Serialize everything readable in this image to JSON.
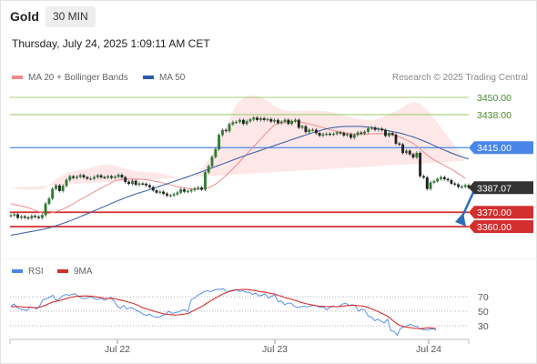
{
  "header": {
    "symbol": "Gold",
    "timeframe": "30 MIN",
    "datetime": "Thursday, July 24, 2025 1:09:11 AM CET"
  },
  "legend": {
    "ma20_label": "MA 20 + Bollinger Bands",
    "ma50_label": "MA 50",
    "credit": "Research © 2025 Trading Central",
    "rsi_label": "RSI",
    "rsi_ma_label": "9MA"
  },
  "colors": {
    "ma20": "#f08a8a",
    "ma50": "#2e5aa8",
    "bollinger_fill": "#fde4e4",
    "resistance": "#8bc34a",
    "support": "#d32f2f",
    "pivot": "#4a86e8",
    "candle_up": "#2e7d32",
    "candle_down": "#222222",
    "arrow": "#2e6db4",
    "rsi": "#4a86e8",
    "rsi_ma": "#d32f2f"
  },
  "chart_data": [
    {
      "type": "candlestick",
      "title": "",
      "x_ticks": [
        "Jul 22",
        "Jul 23",
        "Jul 24"
      ],
      "ylim": [
        3348,
        3478
      ],
      "levels": [
        {
          "label": "3450.00",
          "value": 3450.0,
          "kind": "resistance"
        },
        {
          "label": "3438.00",
          "value": 3438.0,
          "kind": "resistance"
        },
        {
          "label": "3415.00",
          "value": 3415.0,
          "kind": "pivot"
        },
        {
          "label": "3387.07",
          "value": 3387.07,
          "kind": "last_price"
        },
        {
          "label": "3370.00",
          "value": 3370.0,
          "kind": "support"
        },
        {
          "label": "3360.00",
          "value": 3360.0,
          "kind": "support"
        }
      ],
      "close": [
        3367.8,
        3368.5,
        3366.2,
        3367.0,
        3366.3,
        3365.9,
        3367.4,
        3366.8,
        3366.1,
        3368.0,
        3375.9,
        3379.5,
        3386.3,
        3388.6,
        3384.9,
        3388.4,
        3392.5,
        3394.9,
        3394.0,
        3394.7,
        3395.8,
        3394.3,
        3393.4,
        3393.4,
        3394.5,
        3395.6,
        3394.4,
        3394.2,
        3395.0,
        3394.0,
        3394.7,
        3396.0,
        3394.3,
        3391.1,
        3389.8,
        3391.8,
        3389.2,
        3390.0,
        3389.8,
        3388.8,
        3387.5,
        3385.2,
        3383.7,
        3384.3,
        3382.9,
        3381.6,
        3381.7,
        3382.5,
        3383.7,
        3385.9,
        3384.4,
        3384.7,
        3385.5,
        3386.5,
        3387.2,
        3385.9,
        3397.8,
        3402.1,
        3408.5,
        3413.9,
        3423.8,
        3427.2,
        3426.6,
        3431.3,
        3432.6,
        3432.9,
        3434.2,
        3431.6,
        3433.4,
        3434.6,
        3435.8,
        3434.3,
        3435.4,
        3434.3,
        3434.8,
        3433.2,
        3434.2,
        3432.1,
        3433.0,
        3434.3,
        3431.6,
        3433.4,
        3434.3,
        3429.0,
        3429.8,
        3425.9,
        3427.4,
        3427.4,
        3425.1,
        3423.4,
        3424.3,
        3424.6,
        3424.3,
        3424.6,
        3425.6,
        3425.1,
        3423.6,
        3424.3,
        3421.9,
        3423.8,
        3425.5,
        3424.9,
        3426.0,
        3428.4,
        3428.9,
        3427.5,
        3428.1,
        3427.2,
        3423.2,
        3425.1,
        3424.0,
        3417.8,
        3417.2,
        3411.3,
        3412.8,
        3410.4,
        3408.2,
        3411.3,
        3395.1,
        3394.2,
        3386.3,
        3390.7,
        3391.6,
        3393.1,
        3394.4,
        3393.1,
        3392.3,
        3390.0,
        3389.3,
        3387.7,
        3387.8,
        3388.8,
        3387.1
      ],
      "ma20": [
        3376,
        3375.3,
        3374.8,
        3374.3,
        3373.9,
        3373.2,
        3372.2,
        3371.2,
        3370.4,
        3369.6,
        3369.1,
        3369.2,
        3369.8,
        3370.5,
        3371.3,
        3372.2,
        3373.3,
        3374.6,
        3376,
        3377.4,
        3378.8,
        3380.1,
        3381.4,
        3382.8,
        3384.2,
        3385.5,
        3386.8,
        3388.1,
        3389.3,
        3390.6,
        3391.8,
        3392.4,
        3392.8,
        3393,
        3393.1,
        3393.1,
        3393.1,
        3393,
        3392.8,
        3392.6,
        3392.3,
        3391.9,
        3391.4,
        3390.9,
        3390.3,
        3389.6,
        3389,
        3388.4,
        3387.8,
        3387.3,
        3386.9,
        3386.6,
        3386.3,
        3386.2,
        3386.1,
        3385.9,
        3386.3,
        3387.1,
        3388.2,
        3389.6,
        3391.4,
        3393.4,
        3395.5,
        3397.8,
        3400.2,
        3402.7,
        3405.4,
        3407.9,
        3410.5,
        3413.1,
        3415.8,
        3418.4,
        3421,
        3423.6,
        3426.1,
        3428.5,
        3430.8,
        3431.7,
        3432.3,
        3432.9,
        3433.2,
        3433.3,
        3433.3,
        3433,
        3432.6,
        3432.1,
        3431.5,
        3430.9,
        3430.3,
        3429.6,
        3428.9,
        3428.2,
        3427.5,
        3426.9,
        3426.3,
        3425.8,
        3425.4,
        3425,
        3424.6,
        3424.4,
        3424.3,
        3424.3,
        3424.3,
        3424.4,
        3424.6,
        3424.7,
        3424.8,
        3424.7,
        3424.6,
        3424.4,
        3423.9,
        3423.3,
        3422.4,
        3421.4,
        3420.3,
        3419.2,
        3418,
        3416.1,
        3414.1,
        3411.8,
        3409.8,
        3408,
        3406.5,
        3405.1,
        3403.9,
        3402.6,
        3401.3,
        3399.9,
        3398.5,
        3396.9,
        3395.3,
        3393.5
      ],
      "ma50": [
        3354,
        3354.4,
        3354.8,
        3355.3,
        3355.7,
        3356.2,
        3356.6,
        3357.1,
        3357.5,
        3358,
        3358.5,
        3359.1,
        3359.8,
        3360.6,
        3361.4,
        3362.2,
        3363.1,
        3364,
        3364.9,
        3365.9,
        3366.9,
        3367.9,
        3368.9,
        3369.9,
        3371,
        3372,
        3373.1,
        3374.1,
        3375.1,
        3376.2,
        3377.2,
        3378.2,
        3379.1,
        3380.1,
        3381,
        3381.9,
        3382.7,
        3383.5,
        3384.2,
        3385,
        3385.8,
        3386.6,
        3387.4,
        3388.2,
        3389,
        3389.8,
        3390.6,
        3391.4,
        3392.3,
        3393.1,
        3393.9,
        3394.8,
        3395.6,
        3396.5,
        3397.3,
        3398.2,
        3399.1,
        3400,
        3400.9,
        3401.8,
        3402.7,
        3403.6,
        3404.5,
        3405.4,
        3406.3,
        3407.2,
        3408.1,
        3409,
        3409.9,
        3410.7,
        3411.5,
        3412.3,
        3413.2,
        3414,
        3414.8,
        3415.6,
        3416.5,
        3417.3,
        3418.1,
        3418.9,
        3419.7,
        3420.6,
        3421.4,
        3422.2,
        3423,
        3423.8,
        3424.6,
        3425.4,
        3426.1,
        3426.8,
        3427.5,
        3428.1,
        3428.6,
        3429,
        3429.3,
        3429.5,
        3429.7,
        3429.8,
        3429.8,
        3429.8,
        3429.8,
        3429.7,
        3429.5,
        3429.2,
        3428.9,
        3428.5,
        3428.1,
        3427.6,
        3427.2,
        3426.7,
        3426.2,
        3425.7,
        3425.2,
        3424.6,
        3423.9,
        3423.2,
        3422.4,
        3421.6,
        3420.6,
        3419.6,
        3418.6,
        3417.6,
        3416.5,
        3415.4,
        3414.3,
        3413.3,
        3412.3,
        3411.3,
        3410.3,
        3409.4,
        3408.6,
        3407.8,
        3407.2
      ],
      "bollinger_upper": [
        3387,
        3386.5,
        3386.2,
        3385.9,
        3385.8,
        3385.8,
        3385.7,
        3385.7,
        3385.8,
        3386.2,
        3387.2,
        3389,
        3391,
        3393,
        3394.7,
        3396,
        3397.2,
        3398.1,
        3398.6,
        3399,
        3399.4,
        3399.8,
        3400.3,
        3400.9,
        3401.6,
        3402.4,
        3402.9,
        3403.2,
        3403.2,
        3403,
        3402.5,
        3401.8,
        3401,
        3400.3,
        3399.7,
        3399.1,
        3398.6,
        3398.3,
        3398.1,
        3397.9,
        3397.7,
        3397.5,
        3397.3,
        3396.9,
        3396.5,
        3396.1,
        3395.5,
        3394.9,
        3394.3,
        3393.7,
        3393.3,
        3393.4,
        3394.1,
        3395.5,
        3397.4,
        3400,
        3403.1,
        3406.7,
        3410.7,
        3414.9,
        3419.6,
        3424.5,
        3429.5,
        3434.8,
        3440.1,
        3444.6,
        3447.7,
        3449.6,
        3450.7,
        3451.2,
        3451.2,
        3450.8,
        3450.1,
        3449.1,
        3447.5,
        3445.7,
        3443.9,
        3442.5,
        3441.6,
        3440.9,
        3440.6,
        3440.5,
        3440.5,
        3440.6,
        3440.7,
        3440.8,
        3440.9,
        3440.9,
        3440.9,
        3440.7,
        3440.5,
        3440.2,
        3439.8,
        3439.3,
        3438.7,
        3438.1,
        3437.5,
        3436.9,
        3436.2,
        3435.7,
        3435.2,
        3434.8,
        3434.5,
        3434.3,
        3434.3,
        3434.6,
        3435.1,
        3436.3,
        3437.6,
        3438.6,
        3439.4,
        3440.4,
        3441.5,
        3443.2,
        3444.8,
        3446,
        3446.5,
        3446.4,
        3445.5,
        3443.4,
        3441,
        3438.3,
        3435.5,
        3432.4,
        3429.2,
        3425.9,
        3422.6,
        3419.3,
        3416,
        3412.6,
        3409.3,
        3405.8
      ],
      "bollinger_lower": [
        3364,
        3364,
        3363.4,
        3362.8,
        3362.2,
        3361.5,
        3360.7,
        3360.4,
        3360.5,
        3360.9,
        3361.9,
        3363.4,
        3365.2,
        3366.9,
        3368.5,
        3370,
        3371.5,
        3373.1,
        3374.6,
        3376,
        3377.2,
        3378.2,
        3378.9,
        3379.4,
        3379.7,
        3379.9,
        3380,
        3380.1,
        3380.2,
        3380.3,
        3380.4,
        3380.5,
        3380.6,
        3380.7,
        3380.8,
        3380.8,
        3380.7,
        3380.5,
        3380.3,
        3380.1,
        3379.9,
        3379.7,
        3379.5,
        3379.3,
        3379.1,
        3378.9,
        3378.7,
        3378.5,
        3378.4,
        3378.3,
        3378.2,
        3378.1,
        3378.1,
        3378.1,
        3378.1,
        3378.1,
        3378.1,
        3378.1,
        3378.2,
        3378.3,
        3378.5,
        3378.7,
        3379,
        3379.4,
        3379.8,
        3380.3,
        3380.9,
        3381.6,
        3382.8,
        3384.6,
        3386.9,
        3389.6,
        3392.4,
        3395.3,
        3398.4,
        3401.5,
        3404.7,
        3407.7,
        3410.4,
        3413.1,
        3415.6,
        3418,
        3420.2,
        3422,
        3423.4,
        3424.3,
        3424.8,
        3424.9,
        3424.5,
        3423.6,
        3422.3,
        3420.6,
        3418.9,
        3417.6,
        3416.8,
        3416.4,
        3416.1,
        3416,
        3416,
        3416,
        3416,
        3416.1,
        3416.2,
        3416.4,
        3416.7,
        3417.1,
        3417.3,
        3417.1,
        3416.3,
        3414.8,
        3412.4,
        3409.1,
        3404.8,
        3400.7,
        3397.5,
        3394.6,
        3391.8,
        3389.1,
        3386.8,
        3385,
        3383.7,
        3382.7,
        3382.3,
        3382,
        3381.9,
        3381.9,
        3381.8,
        3381.7,
        3381.6,
        3381.5,
        3381.4,
        3381.4
      ]
    },
    {
      "type": "line",
      "title": "",
      "ylim": [
        15,
        90
      ],
      "y_ticks": [
        "70",
        "50",
        "30"
      ],
      "series": [
        {
          "name": "RSI",
          "values": [
            57,
            60,
            55,
            53,
            52,
            51,
            56,
            55,
            53,
            58,
            66,
            67,
            69,
            72,
            65,
            67,
            71,
            73,
            72,
            73,
            74,
            70,
            68,
            67,
            69,
            70,
            67,
            66,
            68,
            65,
            67,
            69,
            64,
            57,
            54,
            58,
            53,
            55,
            54,
            51,
            49,
            46,
            44,
            46,
            43,
            42,
            42,
            44,
            46,
            50,
            47,
            48,
            49,
            51,
            52,
            49,
            66,
            68,
            72,
            74,
            77,
            78,
            77,
            79,
            80,
            80,
            81,
            76,
            78,
            79,
            80,
            77,
            78,
            76,
            76,
            73,
            75,
            71,
            72,
            74,
            68,
            71,
            72,
            63,
            64,
            59,
            61,
            61,
            57,
            55,
            56,
            57,
            56,
            57,
            58,
            57,
            55,
            56,
            52,
            55,
            57,
            56,
            57,
            60,
            61,
            58,
            59,
            57,
            50,
            53,
            51,
            43,
            42,
            37,
            39,
            36,
            34,
            39,
            23,
            22,
            17,
            27,
            28,
            30,
            32,
            30,
            29,
            26,
            25,
            24,
            25,
            26,
            24
          ]
        },
        {
          "name": "9MA",
          "values": [
            56,
            56.5,
            56.5,
            56.3,
            55.8,
            55.6,
            55.4,
            55.1,
            54.8,
            55.6,
            57.1,
            58.7,
            60.7,
            62.6,
            63.6,
            64.6,
            65.8,
            67.1,
            68.2,
            69.4,
            70.2,
            70.8,
            70.8,
            71,
            70.9,
            70.7,
            70.1,
            69.2,
            68.7,
            67.8,
            67.5,
            67.7,
            67.4,
            66.4,
            65.2,
            64.5,
            63.1,
            61.9,
            60.7,
            58.9,
            56.7,
            54.8,
            53.2,
            52.1,
            50.6,
            49.3,
            48.1,
            46.9,
            45.9,
            45.5,
            45.1,
            44.8,
            45,
            45.5,
            46.2,
            46.8,
            49.3,
            51.4,
            53.8,
            55.8,
            58.6,
            61.4,
            64.1,
            66.8,
            69.3,
            71.7,
            74.1,
            75.6,
            77.4,
            78.4,
            79.4,
            79.6,
            79.9,
            79.9,
            79.6,
            78.9,
            78.3,
            77.1,
            76.5,
            76.1,
            75.1,
            74.3,
            73.5,
            71.8,
            70.6,
            68.8,
            67.7,
            66.8,
            65.3,
            63.7,
            62.2,
            61.1,
            60,
            59.1,
            58.3,
            57.5,
            56.9,
            56.8,
            56.3,
            56.5,
            56.6,
            56.3,
            56.5,
            56.8,
            57.6,
            57.8,
            58.2,
            58.2,
            57.5,
            57.2,
            56.5,
            54.8,
            53.3,
            51.4,
            49.7,
            47.4,
            45.2,
            43.1,
            39.3,
            35.9,
            32.4,
            30.1,
            28.9,
            28,
            27.4,
            26.9,
            26.2,
            26,
            26.5,
            27,
            27.2,
            26.9,
            26.2
          ]
        }
      ]
    }
  ]
}
